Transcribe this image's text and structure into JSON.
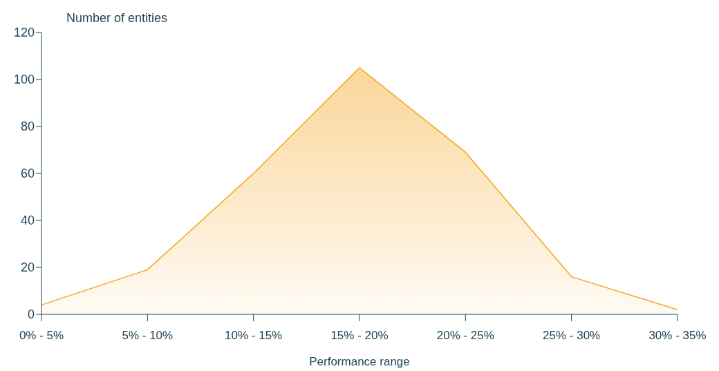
{
  "chart_data": {
    "type": "area",
    "xlabel": "Performance range",
    "ylabel": "Number of entities",
    "categories": [
      "0% - 5%",
      "5% - 10%",
      "10% - 15%",
      "15% - 20%",
      "20% - 25%",
      "25% - 30%",
      "30% - 35%"
    ],
    "values": [
      4,
      19,
      60,
      105,
      69,
      16,
      2
    ],
    "color": "#f5a31a",
    "ylim": [
      0,
      120
    ],
    "yticks": [
      0,
      20,
      40,
      60,
      80,
      100,
      120
    ],
    "grid": false,
    "marker": "none"
  }
}
